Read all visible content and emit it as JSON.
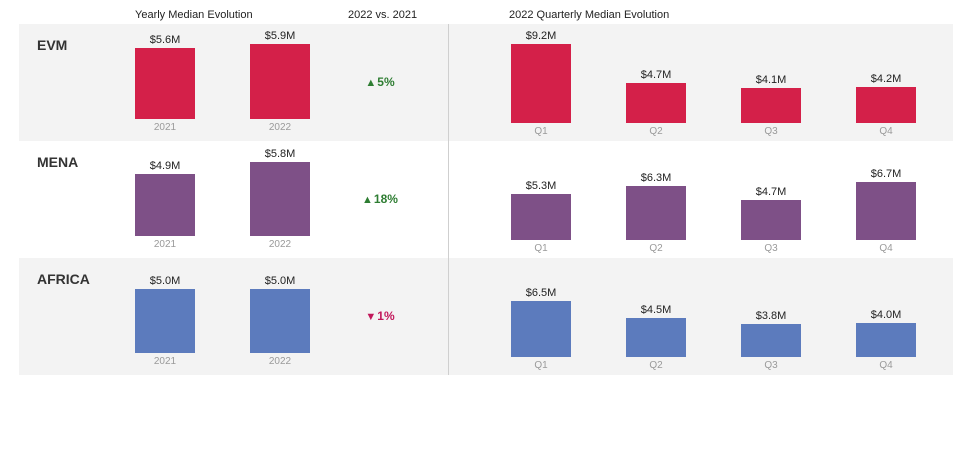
{
  "headers": {
    "yearly": "Yearly Median Evolution",
    "change": "2022 vs. 2021",
    "quarterly": "2022 Quarterly Median Evolution"
  },
  "chart_data": {
    "type": "bar",
    "years": [
      "2021",
      "2022"
    ],
    "quarters": [
      "Q1",
      "Q2",
      "Q3",
      "Q4"
    ],
    "unit": "$M",
    "regions": [
      {
        "name": "EVM",
        "color": "#d42049",
        "yearly": [
          5.6,
          5.9
        ],
        "yearly_labels": [
          "$5.6M",
          "$5.9M"
        ],
        "change": "5%",
        "change_dir": "up",
        "quarterly": [
          9.2,
          4.7,
          4.1,
          4.2
        ],
        "quarterly_labels": [
          "$9.2M",
          "$4.7M",
          "$4.1M",
          "$4.2M"
        ]
      },
      {
        "name": "MENA",
        "color": "#7e5087",
        "yearly": [
          4.9,
          5.8
        ],
        "yearly_labels": [
          "$4.9M",
          "$5.8M"
        ],
        "change": "18%",
        "change_dir": "up",
        "quarterly": [
          5.3,
          6.3,
          4.7,
          6.7
        ],
        "quarterly_labels": [
          "$5.3M",
          "$6.3M",
          "$4.7M",
          "$6.7M"
        ]
      },
      {
        "name": "AFRICA",
        "color": "#5c7bbd",
        "yearly": [
          5.0,
          5.0
        ],
        "yearly_labels": [
          "$5.0M",
          "$5.0M"
        ],
        "change": "1%",
        "change_dir": "down",
        "quarterly": [
          6.5,
          4.5,
          3.8,
          4.0
        ],
        "quarterly_labels": [
          "$6.5M",
          "$4.5M",
          "$3.8M",
          "$4.0M"
        ]
      }
    ],
    "colors": {
      "up": "#2e7d32",
      "down": "#c2185b"
    }
  }
}
